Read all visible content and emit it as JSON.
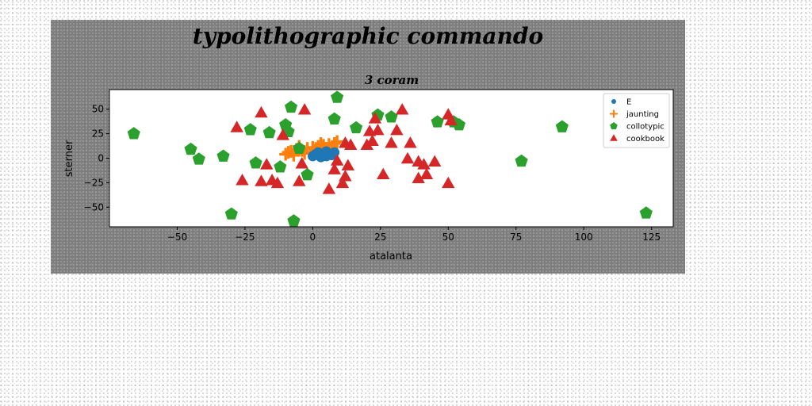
{
  "chart_data": {
    "type": "scatter",
    "title": "typolithographic commando",
    "subtitle": "3 coram",
    "xlabel": "atalanta",
    "ylabel": "sterner",
    "xlim": [
      -75,
      133
    ],
    "ylim": [
      -70,
      70
    ],
    "xticks": [
      -50,
      -25,
      0,
      25,
      50,
      75,
      100,
      125
    ],
    "yticks": [
      -50,
      -25,
      0,
      25,
      50
    ],
    "legend_position": "top-right",
    "grid": false,
    "series": [
      {
        "name": "E",
        "marker": "circle",
        "color": "#1f77b4",
        "points": [
          [
            0,
            2
          ],
          [
            1,
            4
          ],
          [
            2,
            3
          ],
          [
            3,
            1
          ],
          [
            4,
            5
          ],
          [
            5,
            2
          ],
          [
            6,
            4
          ],
          [
            7,
            3
          ],
          [
            8,
            6
          ],
          [
            2,
            6
          ],
          [
            5,
            7
          ]
        ]
      },
      {
        "name": "jaunting",
        "marker": "plus",
        "color": "#ff7f0e",
        "points": [
          [
            -10,
            4
          ],
          [
            -8,
            7
          ],
          [
            -6,
            9
          ],
          [
            -4,
            8
          ],
          [
            -2,
            10
          ],
          [
            0,
            11
          ],
          [
            2,
            12
          ],
          [
            4,
            13
          ],
          [
            6,
            14
          ],
          [
            8,
            15
          ],
          [
            9,
            17
          ],
          [
            -7,
            3
          ],
          [
            -3,
            5
          ],
          [
            1,
            8
          ],
          [
            5,
            10
          ],
          [
            -5,
            12
          ],
          [
            3,
            15
          ],
          [
            7,
            10
          ],
          [
            -9,
            6
          ],
          [
            0,
            6
          ]
        ]
      },
      {
        "name": "collotypic",
        "marker": "pentagon",
        "color": "#2ca02c",
        "points": [
          [
            -66,
            25
          ],
          [
            -45,
            9
          ],
          [
            -42,
            -1
          ],
          [
            -33,
            2
          ],
          [
            -30,
            -57
          ],
          [
            -23,
            29
          ],
          [
            -21,
            -5
          ],
          [
            -16,
            26
          ],
          [
            -12,
            -9
          ],
          [
            -10,
            34
          ],
          [
            -9,
            27
          ],
          [
            -8,
            52
          ],
          [
            -7,
            -64
          ],
          [
            -5,
            10
          ],
          [
            -2,
            -17
          ],
          [
            8,
            40
          ],
          [
            9,
            62
          ],
          [
            16,
            31
          ],
          [
            24,
            44
          ],
          [
            29,
            42
          ],
          [
            46,
            37
          ],
          [
            52,
            37
          ],
          [
            54,
            34
          ],
          [
            77,
            -3
          ],
          [
            92,
            32
          ],
          [
            123,
            -56
          ]
        ]
      },
      {
        "name": "cookbook",
        "marker": "triangle",
        "color": "#d62728",
        "points": [
          [
            -28,
            31
          ],
          [
            -26,
            -23
          ],
          [
            -19,
            -24
          ],
          [
            -19,
            46
          ],
          [
            -17,
            -7
          ],
          [
            -15,
            -23
          ],
          [
            -13,
            -26
          ],
          [
            -11,
            23
          ],
          [
            -5,
            -24
          ],
          [
            -4,
            -6
          ],
          [
            -3,
            49
          ],
          [
            6,
            -32
          ],
          [
            8,
            -12
          ],
          [
            9,
            -3
          ],
          [
            11,
            -26
          ],
          [
            12,
            -19
          ],
          [
            13,
            -8
          ],
          [
            12,
            15
          ],
          [
            14,
            13
          ],
          [
            20,
            13
          ],
          [
            21,
            27
          ],
          [
            22,
            17
          ],
          [
            23,
            40
          ],
          [
            24,
            28
          ],
          [
            26,
            -17
          ],
          [
            29,
            15
          ],
          [
            31,
            28
          ],
          [
            33,
            49
          ],
          [
            35,
            -1
          ],
          [
            36,
            15
          ],
          [
            39,
            -4
          ],
          [
            39,
            -21
          ],
          [
            41,
            -7
          ],
          [
            42,
            -17
          ],
          [
            45,
            -4
          ],
          [
            50,
            44
          ],
          [
            50,
            -26
          ],
          [
            51,
            38
          ]
        ]
      }
    ]
  }
}
